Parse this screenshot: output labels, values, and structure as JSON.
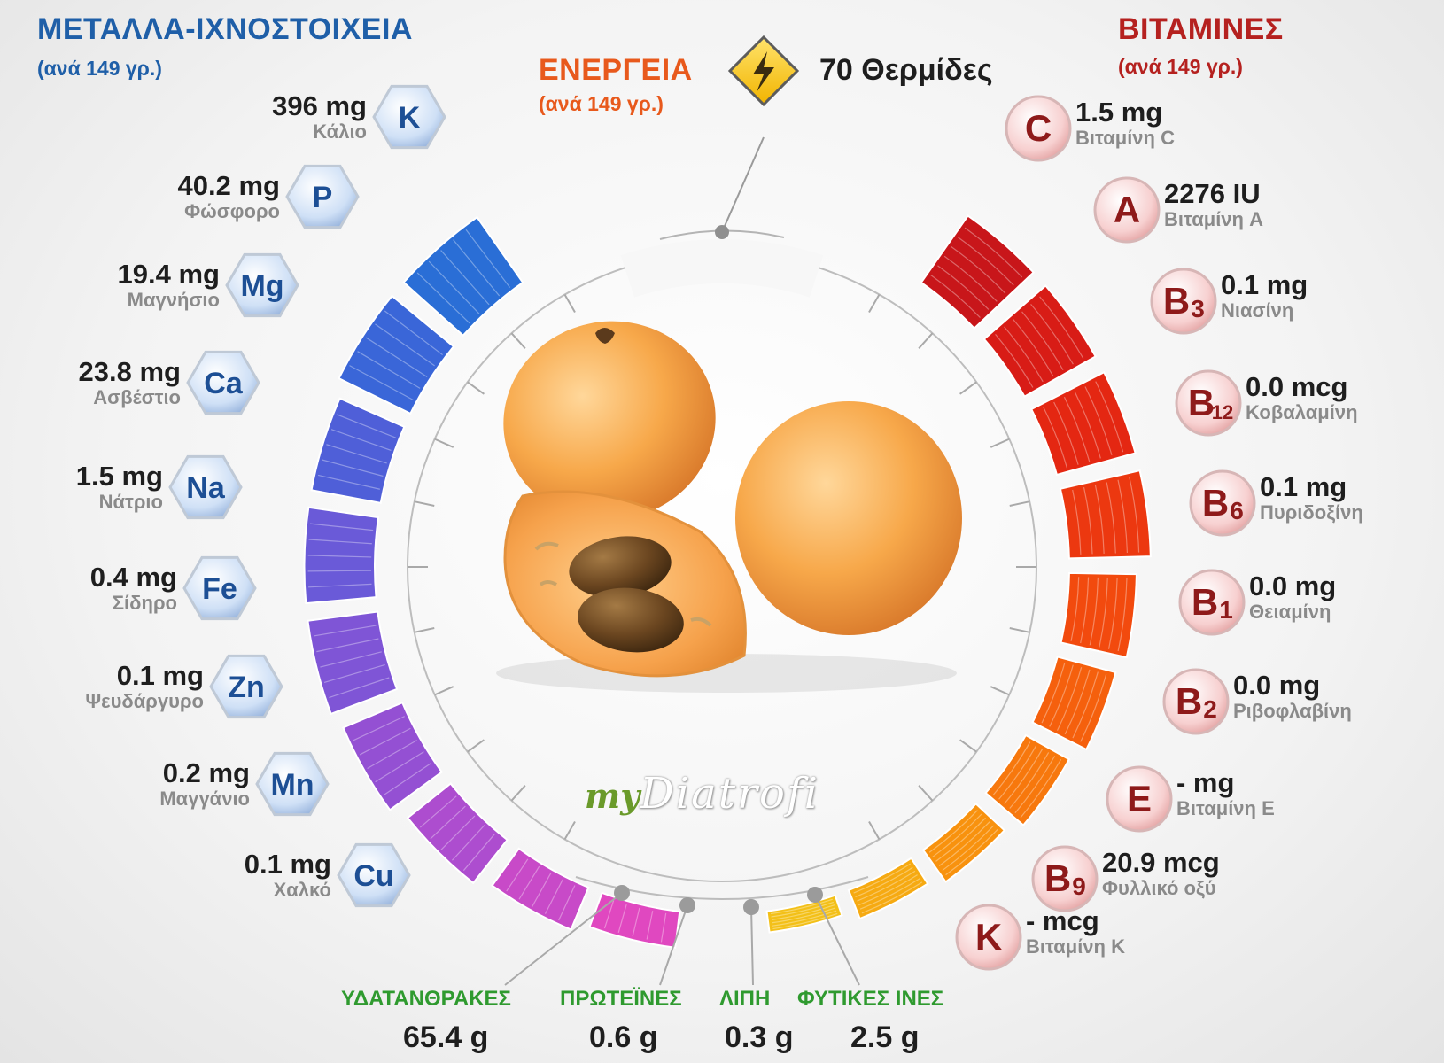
{
  "minerals": {
    "title": "ΜΕΤΑΛΛΑ-ΙΧΝΟΣΤΟΙΧΕΙΑ",
    "subtitle": "(ανά 149 γρ.)",
    "color": "#1f5fa8",
    "items": [
      {
        "symbol": "K",
        "value": "396 mg",
        "name": "Κάλιο",
        "bar_color": "#2a6ed6",
        "bar_level": 1.0
      },
      {
        "symbol": "P",
        "value": "40.2 mg",
        "name": "Φώσφορο",
        "bar_color": "#3a66d8",
        "bar_level": 1.0
      },
      {
        "symbol": "Mg",
        "value": "19.4 mg",
        "name": "Μαγνήσιο",
        "bar_color": "#4f5fd8",
        "bar_level": 0.85
      },
      {
        "symbol": "Ca",
        "value": "23.8 mg",
        "name": "Ασβέστιο",
        "bar_color": "#6a5ad8",
        "bar_level": 0.85
      },
      {
        "symbol": "Na",
        "value": "1.5 mg",
        "name": "Νάτριο",
        "bar_color": "#7f55d6",
        "bar_level": 0.85
      },
      {
        "symbol": "Fe",
        "value": "0.4 mg",
        "name": "Σίδηρο",
        "bar_color": "#9450d3",
        "bar_level": 0.75
      },
      {
        "symbol": "Zn",
        "value": "0.1 mg",
        "name": "Ψευδάργυρο",
        "bar_color": "#ad4dcf",
        "bar_level": 0.6
      },
      {
        "symbol": "Mn",
        "value": "0.2 mg",
        "name": "Μαγγάνιο",
        "bar_color": "#c84ac8",
        "bar_level": 0.45
      },
      {
        "symbol": "Cu",
        "value": "0.1 mg",
        "name": "Χαλκό",
        "bar_color": "#e048c0",
        "bar_level": 0.3
      }
    ]
  },
  "energy": {
    "title": "ΕΝΕΡΓΕΙΑ",
    "subtitle": "(ανά 149 γρ.)",
    "value": "70 Θερμίδες",
    "color": "#e8591c",
    "icon": "lightning-icon"
  },
  "vitamins": {
    "title": "ΒΙΤΑΜΙΝΕΣ",
    "subtitle": "(ανά 149 γρ.)",
    "color": "#b5211f",
    "items": [
      {
        "symbol": "C",
        "sub": "",
        "value": "1.5 mg",
        "name": "Βιταμίνη C",
        "bar_color": "#c8161a",
        "bar_level": 1.0
      },
      {
        "symbol": "A",
        "sub": "",
        "value": "2276 IU",
        "name": "Βιταμίνη A",
        "bar_color": "#d81c16",
        "bar_level": 1.0
      },
      {
        "symbol": "B",
        "sub": "3",
        "value": "0.1 mg",
        "name": "Νιασίνη",
        "bar_color": "#e42712",
        "bar_level": 1.0
      },
      {
        "symbol": "B",
        "sub": "12",
        "value": "0.0 mcg",
        "name": "Κοβαλαμίνη",
        "bar_color": "#ec3810",
        "bar_level": 1.0
      },
      {
        "symbol": "B",
        "sub": "6",
        "value": "0.1 mg",
        "name": "Πυριδοξίνη",
        "bar_color": "#f24a0e",
        "bar_level": 0.8
      },
      {
        "symbol": "B",
        "sub": "1",
        "value": "0.0 mg",
        "name": "Θειαμίνη",
        "bar_color": "#f5600d",
        "bar_level": 0.7
      },
      {
        "symbol": "B",
        "sub": "2",
        "value": "0.0 mg",
        "name": "Ριβοφλαβίνη",
        "bar_color": "#f7780d",
        "bar_level": 0.55
      },
      {
        "symbol": "E",
        "sub": "",
        "value": "- mg",
        "name": "Βιταμίνη E",
        "bar_color": "#f8920e",
        "bar_level": 0.4
      },
      {
        "symbol": "B",
        "sub": "9",
        "value": "20.9 mcg",
        "name": "Φυλλικό οξύ",
        "bar_color": "#f6aa12",
        "bar_level": 0.28
      },
      {
        "symbol": "K",
        "sub": "",
        "value": "- mcg",
        "name": "Βιταμίνη K",
        "bar_color": "#f3c018",
        "bar_level": 0.15
      }
    ]
  },
  "macros": {
    "color": "#2f9a2f",
    "items": [
      {
        "label": "ΥΔΑΤΑΝΘΡΑΚΕΣ",
        "value": "65.4 g"
      },
      {
        "label": "ΠΡΩΤΕΪΝΕΣ",
        "value": "0.6 g"
      },
      {
        "label": "ΛΙΠΗ",
        "value": "0.3 g"
      },
      {
        "label": "ΦΥΤΙΚΕΣ ΙΝΕΣ",
        "value": "2.5 g"
      }
    ]
  },
  "logo": {
    "text_a": "my",
    "text_b": "Diatrofi"
  }
}
